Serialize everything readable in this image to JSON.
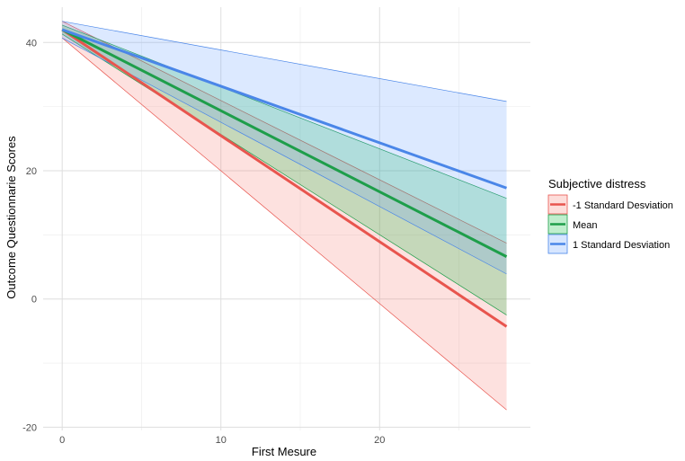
{
  "chart_data": {
    "type": "line",
    "xlabel": "First Mesure",
    "ylabel": "Outcome Questionnarie Scores",
    "xlim": [
      -1.2,
      29.5
    ],
    "ylim": [
      -20.5,
      45.5
    ],
    "x_ticks": [
      "0",
      "10",
      "20"
    ],
    "y_ticks": [
      "-20",
      "0",
      "20",
      "40"
    ],
    "grid": true,
    "legend": {
      "title": "Subjective distress",
      "position": "right"
    },
    "x": [
      0,
      28
    ],
    "series": [
      {
        "name": "-1 Standard Desviation",
        "color": "#e8554e",
        "fill": "#f8766d",
        "values": [
          42.0,
          -4.3
        ],
        "lower": [
          40.7,
          -17.3
        ],
        "upper": [
          43.3,
          8.7
        ]
      },
      {
        "name": "Mean",
        "color": "#1e9e4a",
        "fill": "#00ba38",
        "values": [
          42.0,
          6.6
        ],
        "lower": [
          41.3,
          -2.5
        ],
        "upper": [
          42.7,
          15.7
        ]
      },
      {
        "name": "1 Standard Desviation",
        "color": "#4a86e8",
        "fill": "#619cff",
        "values": [
          42.0,
          17.3
        ],
        "lower": [
          40.7,
          3.9
        ],
        "upper": [
          43.3,
          30.8
        ]
      }
    ]
  }
}
